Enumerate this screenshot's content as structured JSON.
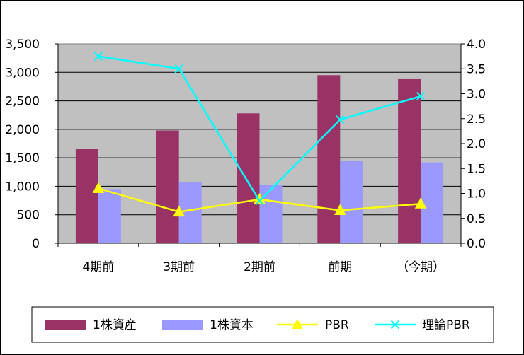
{
  "chart_data": {
    "type": "bar",
    "categories": [
      "4期前",
      "3期前",
      "2期前",
      "前期",
      "（今期）"
    ],
    "series": [
      {
        "name": "1株資産",
        "kind": "bar",
        "axis": "left",
        "color": "#993366",
        "values": [
          1660,
          1980,
          2280,
          2950,
          2880
        ]
      },
      {
        "name": "1株資本",
        "kind": "bar",
        "axis": "left",
        "color": "#9999ff",
        "values": [
          950,
          1070,
          1020,
          1440,
          1420
        ]
      },
      {
        "name": "PBR",
        "kind": "line",
        "axis": "right",
        "color": "#ffff00",
        "marker": "triangle",
        "values": [
          1.1,
          0.63,
          0.88,
          0.66,
          0.79
        ]
      },
      {
        "name": "理論PBR",
        "kind": "line",
        "axis": "right",
        "color": "#00ffff",
        "marker": "x",
        "values": [
          3.75,
          3.5,
          0.85,
          2.48,
          2.95
        ]
      }
    ],
    "y_left": {
      "ylim": [
        0,
        3500
      ],
      "ticks": [
        "0",
        "500",
        "1,000",
        "1,500",
        "2,000",
        "2,500",
        "3,000",
        "3,500"
      ]
    },
    "y_right": {
      "ylim": [
        0,
        4.0
      ],
      "ticks": [
        "0.0",
        "0.5",
        "1.0",
        "1.5",
        "2.0",
        "2.5",
        "3.0",
        "3.5",
        "4.0"
      ]
    },
    "plot_background": "#c0c0c0",
    "grid": true,
    "legend_position": "bottom"
  }
}
